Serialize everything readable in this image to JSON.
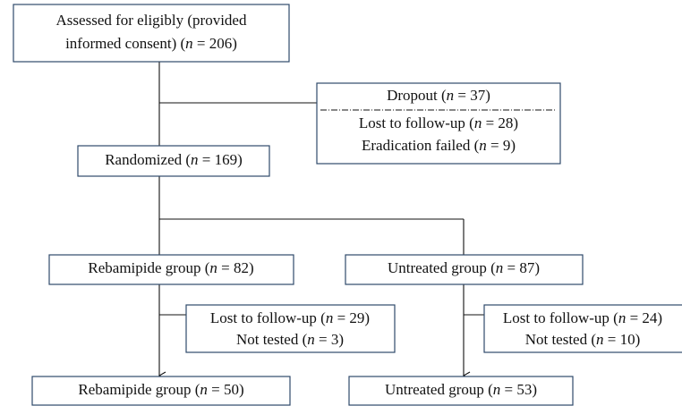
{
  "nodes": [
    {
      "lines": [
        [
          "Assessed for eligibly (provided"
        ],
        [
          "informed consent) (",
          "n",
          " = 206)"
        ]
      ]
    },
    {
      "lines": [
        [
          "Dropout (",
          "n",
          " = 37)"
        ],
        [
          "Lost to follow-up (",
          "n",
          " = 28)"
        ],
        [
          "Eradication failed (",
          "n",
          " = 9)"
        ]
      ]
    },
    {
      "lines": [
        [
          "Randomized (",
          "n",
          " = 169)"
        ]
      ]
    },
    {
      "lines": [
        [
          "Rebamipide group (",
          "n",
          " = 82)"
        ]
      ]
    },
    {
      "lines": [
        [
          "Untreated group (",
          "n",
          " = 87)"
        ]
      ]
    },
    {
      "lines": [
        [
          "Lost to follow-up (",
          "n",
          " = 29)"
        ],
        [
          "Not tested (",
          "n",
          " = 3)"
        ]
      ]
    },
    {
      "lines": [
        [
          "Lost to follow-up (",
          "n",
          " = 24)"
        ],
        [
          "Not tested (",
          "n",
          " = 10)"
        ]
      ]
    },
    {
      "lines": [
        [
          "Rebamipide group (",
          "n",
          " = 50)"
        ]
      ]
    },
    {
      "lines": [
        [
          "Untreated group (",
          "n",
          " = 53)"
        ]
      ]
    }
  ]
}
